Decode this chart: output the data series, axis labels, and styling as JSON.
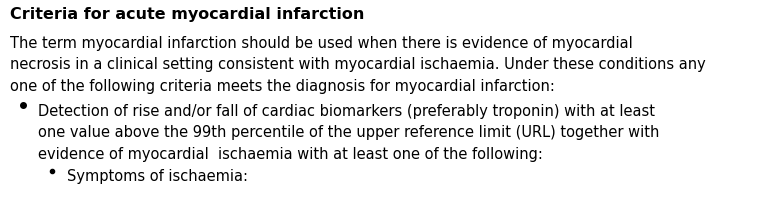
{
  "title": "Criteria for acute myocardial infarction",
  "body_lines": [
    "The term myocardial infarction should be used when there is evidence of myocardial",
    "necrosis in a clinical setting consistent with myocardial ischaemia. Under these conditions any",
    "one of the following criteria meets the diagnosis for myocardial infarction:"
  ],
  "bullet1_lines": [
    "Detection of rise and/or fall of cardiac biomarkers (preferably troponin) with at least",
    "one value above the 99th percentile of the upper reference limit (URL) together with",
    "evidence of myocardial  ischaemia with at least one of the following:"
  ],
  "sub_bullet_line": "Symptoms of ischaemia:",
  "bg_color": "#ffffff",
  "text_color": "#000000",
  "title_fontsize": 11.5,
  "body_fontsize": 10.5,
  "font_family": "DejaVu Sans"
}
